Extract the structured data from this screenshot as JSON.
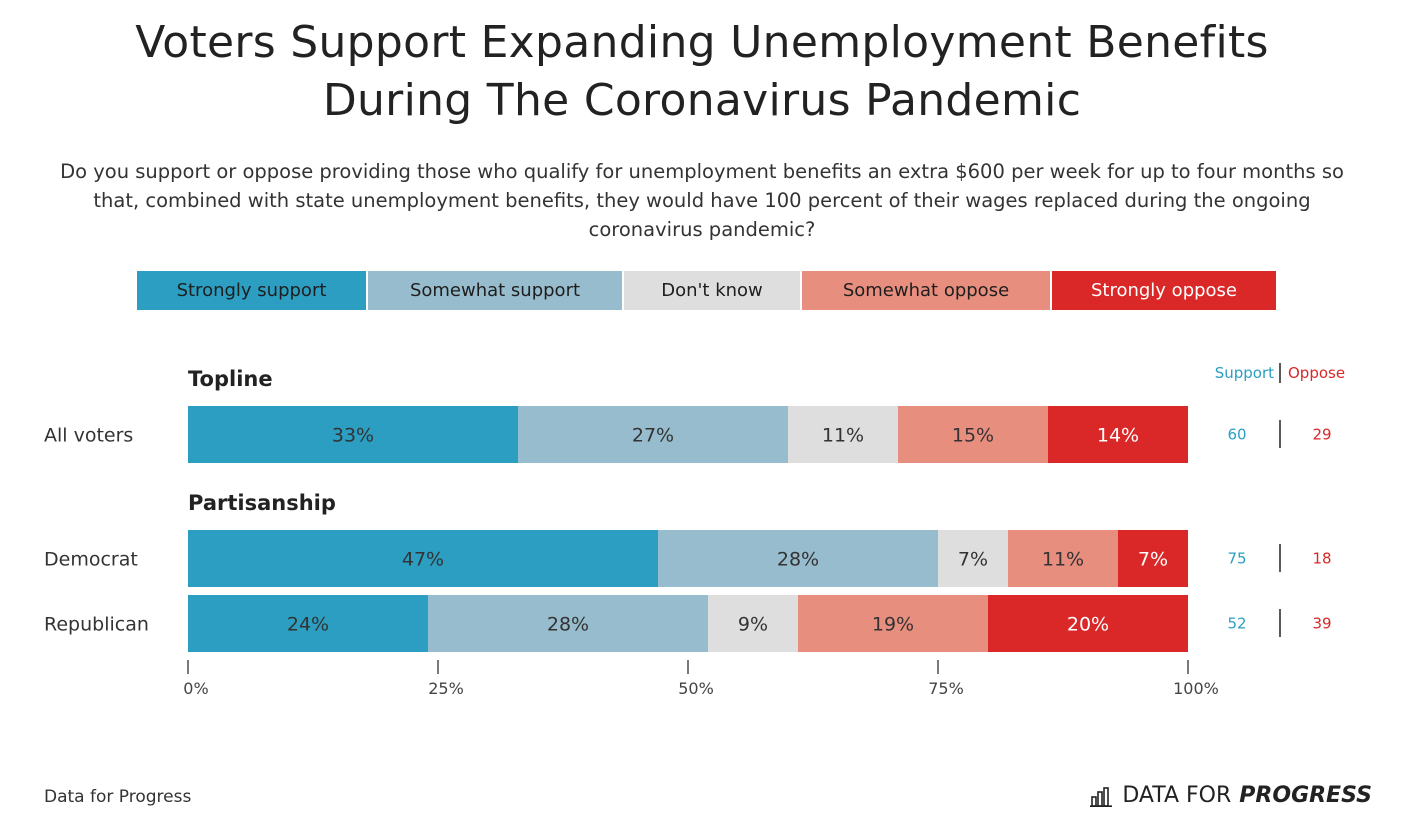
{
  "title_lines": [
    "Voters Support Expanding Unemployment Benefits",
    "During The Coronavirus Pandemic"
  ],
  "subtitle": "Do you support or oppose providing those who qualify for unemployment benefits an extra $600 per week for up to four months so that, combined with state unemployment benefits, they would have 100 percent of their wages replaced during the ongoing coronavirus pandemic?",
  "source": "Data for Progress",
  "brand": {
    "icon": "bar-chart-icon",
    "text_regular": "DATA FOR",
    "text_bold": "PROGRESS"
  },
  "colors": {
    "strongly_support": "#2b9ec2",
    "somewhat_support": "#97bccd",
    "dont_know": "#dedede",
    "somewhat_oppose": "#e88e7e",
    "strongly_oppose": "#d92827",
    "support_text": "#2b9ec2",
    "oppose_text": "#d92827"
  },
  "legend": [
    {
      "label": "Strongly support",
      "color": "#2b9ec2",
      "text_color": "#1e1e1e"
    },
    {
      "label": "Somewhat support",
      "color": "#97bccd",
      "text_color": "#1e1e1e"
    },
    {
      "label": "Don't know",
      "color": "#dedede",
      "text_color": "#1e1e1e"
    },
    {
      "label": "Somewhat oppose",
      "color": "#e88e7e",
      "text_color": "#1e1e1e"
    },
    {
      "label": "Strongly oppose",
      "color": "#d92827",
      "text_color": "#ffffff"
    }
  ],
  "net_headers": {
    "support": "Support",
    "oppose": "Oppose"
  },
  "chart_data": {
    "type": "bar",
    "orientation": "horizontal",
    "stacked": true,
    "series_names": [
      "Strongly support",
      "Somewhat support",
      "Don't know",
      "Somewhat oppose",
      "Strongly oppose"
    ],
    "sections": [
      {
        "label": "Topline",
        "rows": [
          {
            "label": "All voters",
            "values": [
              33,
              27,
              11,
              15,
              14
            ],
            "support": 60,
            "oppose": 29
          }
        ]
      },
      {
        "label": "Partisanship",
        "rows": [
          {
            "label": "Democrat",
            "values": [
              47,
              28,
              7,
              11,
              7
            ],
            "support": 75,
            "oppose": 18
          },
          {
            "label": "Republican",
            "values": [
              24,
              28,
              9,
              19,
              20
            ],
            "support": 52,
            "oppose": 39
          }
        ]
      }
    ],
    "xlim": [
      0,
      100
    ],
    "xticks": [
      0,
      25,
      50,
      75,
      100
    ],
    "xtick_labels": [
      "0%",
      "25%",
      "50%",
      "75%",
      "100%"
    ],
    "value_suffix": "%",
    "legend_position": "top"
  }
}
